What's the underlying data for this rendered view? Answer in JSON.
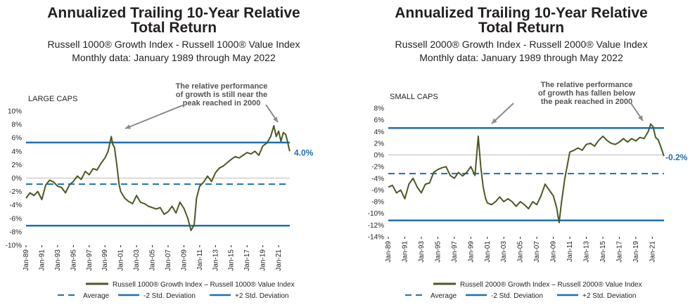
{
  "chart_data": [
    {
      "type": "line",
      "title": "Annualized Trailing 10-Year Relative",
      "title_line2": "Total Return",
      "subtitle": "Russell 1000® Growth Index - Russell 1000® Value Index",
      "subtitle2": "Monthly data: January 1989 through May 2022",
      "panel_label": "LARGE CAPS",
      "annotation": [
        "The relative performance",
        "of growth is still near the",
        "peak reached in 2000"
      ],
      "end_label": "4.0%",
      "ylim": [
        -10,
        10
      ],
      "y_ticks": [
        "10%",
        "8%",
        "6%",
        "4%",
        "2%",
        "0%",
        "-2%",
        "-4%",
        "-6%",
        "-8%",
        "-10%"
      ],
      "x_ticks": [
        "Jan-89",
        "Jan-91",
        "Jan-93",
        "Jan-95",
        "Jan-97",
        "Jan-99",
        "Jan-01",
        "Jan-03",
        "Jan-05",
        "Jan-07",
        "Jan-09",
        "Jan-11",
        "Jan-13",
        "Jan-15",
        "Jan-17",
        "Jan-19",
        "Jan-21"
      ],
      "reference_lines": {
        "average": -0.9,
        "minus_2_std": -7.1,
        "plus_2_std": 5.3
      },
      "series": [
        {
          "name": "Russell 1000® Growth Index – Russell 1000® Value Index",
          "x": [
            1989.0,
            1989.5,
            1990.0,
            1990.5,
            1991.0,
            1991.5,
            1992.0,
            1992.5,
            1993.0,
            1993.5,
            1994.0,
            1994.5,
            1995.0,
            1995.5,
            1996.0,
            1996.5,
            1997.0,
            1997.5,
            1998.0,
            1998.5,
            1999.0,
            1999.4,
            1999.8,
            2000.0,
            2000.2,
            2000.5,
            2000.8,
            2001.0,
            2001.5,
            2002.0,
            2002.5,
            2003.0,
            2003.5,
            2004.0,
            2004.5,
            2005.0,
            2005.5,
            2006.0,
            2006.5,
            2007.0,
            2007.5,
            2008.0,
            2008.5,
            2009.0,
            2009.5,
            2009.9,
            2010.3,
            2010.6,
            2011.0,
            2011.5,
            2012.0,
            2012.5,
            2013.0,
            2013.5,
            2014.0,
            2014.5,
            2015.0,
            2015.5,
            2016.0,
            2016.5,
            2017.0,
            2017.5,
            2018.0,
            2018.5,
            2019.0,
            2019.5,
            2020.0,
            2020.4,
            2020.7,
            2021.0,
            2021.3,
            2021.6,
            2021.9,
            2022.1,
            2022.4
          ],
          "values": [
            -3.0,
            -2.2,
            -2.6,
            -2.0,
            -3.2,
            -1.0,
            -0.3,
            -0.6,
            -1.2,
            -1.4,
            -2.2,
            -1.0,
            -0.5,
            0.3,
            -0.2,
            1.0,
            0.5,
            1.4,
            1.2,
            2.2,
            3.0,
            4.0,
            6.2,
            5.0,
            4.6,
            2.0,
            -1.0,
            -2.0,
            -3.0,
            -3.5,
            -3.8,
            -2.6,
            -3.6,
            -3.8,
            -4.2,
            -4.4,
            -4.6,
            -4.4,
            -5.4,
            -5.0,
            -4.2,
            -5.2,
            -3.6,
            -4.5,
            -6.0,
            -7.8,
            -7.0,
            -3.0,
            -1.2,
            -0.6,
            0.3,
            -0.5,
            0.8,
            1.5,
            1.8,
            2.3,
            2.8,
            3.2,
            3.0,
            3.4,
            3.8,
            3.6,
            4.0,
            3.4,
            4.8,
            5.2,
            6.2,
            7.8,
            6.2,
            7.0,
            5.5,
            6.8,
            6.5,
            5.6,
            4.0
          ]
        }
      ],
      "legend": [
        "Russell 1000® Growth Index – Russell 1000® Value Index",
        "Average",
        "-2 Std. Deviation",
        "+2 Std. Deviation"
      ],
      "colors": {
        "series": "#4a5a23",
        "reference": "#1f6fb2",
        "end_label": "#1f6fb2",
        "annotation": "#555555",
        "arrow": "#8a8a8a"
      }
    },
    {
      "type": "line",
      "title": "Annualized Trailing 10-Year Relative",
      "title_line2": "Total Return",
      "subtitle": "Russell 2000® Growth Index - Russell 2000® Value Index",
      "subtitle2": "Monthly data: January 1989 through May 2022",
      "panel_label": "SMALL CAPS",
      "annotation": [
        "The relative performance",
        "of growth has fallen below",
        "the peak reached in 2000"
      ],
      "end_label": "-0.2%",
      "ylim": [
        -14,
        8
      ],
      "y_ticks": [
        "8%",
        "6%",
        "4%",
        "2%",
        "0%",
        "-2%",
        "-4%",
        "-6%",
        "-8%",
        "-10%",
        "-12%",
        "-14%"
      ],
      "x_ticks": [
        "Jan-89",
        "Jan-91",
        "Jan-93",
        "Jan-95",
        "Jan-97",
        "Jan-99",
        "Jan-01",
        "Jan-03",
        "Jan-05",
        "Jan-07",
        "Jan-09",
        "Jan-11",
        "Jan-13",
        "Jan-15",
        "Jan-17",
        "Jan-19",
        "Jan-21"
      ],
      "reference_lines": {
        "average": -3.2,
        "minus_2_std": -11.2,
        "plus_2_std": 4.6
      },
      "series": [
        {
          "name": "Russell 2000® Growth Index – Russell 2000® Value Index",
          "x": [
            1989.0,
            1989.5,
            1990.0,
            1990.5,
            1991.0,
            1991.5,
            1992.0,
            1992.5,
            1993.0,
            1993.5,
            1994.0,
            1994.5,
            1995.0,
            1995.5,
            1996.0,
            1996.5,
            1997.0,
            1997.5,
            1998.0,
            1998.5,
            1999.0,
            1999.5,
            1999.9,
            2000.2,
            2000.5,
            2000.8,
            2001.0,
            2001.5,
            2002.0,
            2002.5,
            2003.0,
            2003.5,
            2004.0,
            2004.5,
            2005.0,
            2005.5,
            2006.0,
            2006.5,
            2007.0,
            2007.5,
            2008.0,
            2008.5,
            2009.0,
            2009.4,
            2009.7,
            2010.0,
            2010.4,
            2010.8,
            2011.0,
            2011.5,
            2012.0,
            2012.5,
            2013.0,
            2013.5,
            2014.0,
            2014.5,
            2015.0,
            2015.5,
            2016.0,
            2016.5,
            2017.0,
            2017.5,
            2018.0,
            2018.5,
            2019.0,
            2019.5,
            2020.0,
            2020.5,
            2020.8,
            2021.1,
            2021.4,
            2021.7,
            2022.0,
            2022.4
          ],
          "values": [
            -5.5,
            -5.2,
            -6.5,
            -6.0,
            -7.5,
            -5.0,
            -4.0,
            -5.5,
            -6.5,
            -5.0,
            -4.8,
            -3.0,
            -2.5,
            -2.2,
            -2.0,
            -3.5,
            -4.0,
            -3.0,
            -3.6,
            -3.0,
            -2.0,
            -3.5,
            3.2,
            -2.0,
            -5.5,
            -7.5,
            -8.2,
            -8.5,
            -8.0,
            -7.2,
            -8.0,
            -7.5,
            -8.0,
            -8.8,
            -8.0,
            -8.5,
            -9.2,
            -8.0,
            -8.5,
            -7.0,
            -5.0,
            -6.0,
            -7.0,
            -9.0,
            -11.6,
            -8.0,
            -4.0,
            -1.0,
            0.5,
            0.8,
            1.2,
            0.8,
            1.8,
            2.0,
            1.5,
            2.5,
            3.2,
            2.5,
            2.0,
            1.8,
            2.2,
            2.8,
            2.2,
            2.8,
            2.4,
            3.0,
            2.8,
            4.0,
            5.3,
            4.8,
            3.0,
            2.6,
            1.5,
            -0.2
          ]
        }
      ],
      "legend": [
        "Russell 2000® Growth Index – Russell 2000® Value Index",
        "Average",
        "-2 Std. Deviation",
        "+2 Std. Deviation"
      ],
      "colors": {
        "series": "#4a5a23",
        "reference": "#1f6fb2",
        "end_label": "#1f6fb2",
        "annotation": "#555555",
        "arrow": "#8a8a8a"
      }
    }
  ]
}
